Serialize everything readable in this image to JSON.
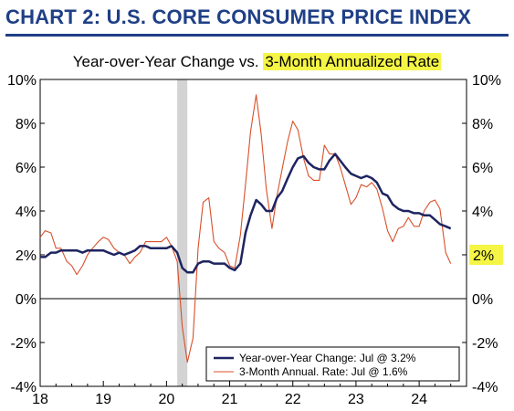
{
  "header": {
    "title": "CHART 2: U.S. CORE CONSUMER PRICE INDEX"
  },
  "subtitle": {
    "part1": "Year-over-Year Change vs. ",
    "part2": "3-Month Annualized Rate"
  },
  "colors": {
    "header": "#1f3f86",
    "yoy": "#1e2460",
    "annualized": "#d9502a",
    "highlight": "#f5f545",
    "recession": "#d3d3d3"
  },
  "chart_data": {
    "type": "line",
    "xlim": [
      18,
      24.75
    ],
    "ylim": [
      -4,
      10
    ],
    "x_ticks": [
      18,
      19,
      20,
      21,
      22,
      23,
      24
    ],
    "x_tick_labels": [
      "18",
      "19",
      "20",
      "21",
      "22",
      "23",
      "24"
    ],
    "y_ticks": [
      -4,
      -2,
      0,
      2,
      4,
      6,
      8,
      10
    ],
    "y_tick_labels": [
      "-4%",
      "-2%",
      "0%",
      "2%",
      "4%",
      "6%",
      "8%",
      "10%"
    ],
    "right_highlight_label": "2%",
    "right_highlight_value": 2,
    "recession_band": [
      20.17,
      20.33
    ],
    "grid": false,
    "legend_position": "bottom-right",
    "series": [
      {
        "name": "Year-over-Year Change: Jul @  3.2%",
        "values": [
          [
            18.0,
            1.9
          ],
          [
            18.08,
            1.9
          ],
          [
            18.17,
            2.1
          ],
          [
            18.25,
            2.1
          ],
          [
            18.33,
            2.2
          ],
          [
            18.42,
            2.2
          ],
          [
            18.5,
            2.2
          ],
          [
            18.58,
            2.2
          ],
          [
            18.67,
            2.1
          ],
          [
            18.75,
            2.2
          ],
          [
            18.83,
            2.2
          ],
          [
            18.92,
            2.2
          ],
          [
            19.0,
            2.2
          ],
          [
            19.08,
            2.1
          ],
          [
            19.17,
            2.0
          ],
          [
            19.25,
            2.1
          ],
          [
            19.33,
            2.0
          ],
          [
            19.42,
            2.1
          ],
          [
            19.5,
            2.2
          ],
          [
            19.58,
            2.4
          ],
          [
            19.67,
            2.4
          ],
          [
            19.75,
            2.3
          ],
          [
            19.83,
            2.3
          ],
          [
            19.92,
            2.3
          ],
          [
            20.0,
            2.3
          ],
          [
            20.08,
            2.4
          ],
          [
            20.17,
            2.1
          ],
          [
            20.25,
            1.4
          ],
          [
            20.33,
            1.2
          ],
          [
            20.42,
            1.2
          ],
          [
            20.5,
            1.6
          ],
          [
            20.58,
            1.7
          ],
          [
            20.67,
            1.7
          ],
          [
            20.75,
            1.6
          ],
          [
            20.83,
            1.6
          ],
          [
            20.92,
            1.6
          ],
          [
            21.0,
            1.4
          ],
          [
            21.08,
            1.3
          ],
          [
            21.17,
            1.6
          ],
          [
            21.25,
            3.0
          ],
          [
            21.33,
            3.8
          ],
          [
            21.42,
            4.5
          ],
          [
            21.5,
            4.3
          ],
          [
            21.58,
            4.0
          ],
          [
            21.67,
            4.0
          ],
          [
            21.75,
            4.6
          ],
          [
            21.83,
            4.9
          ],
          [
            21.92,
            5.5
          ],
          [
            22.0,
            6.0
          ],
          [
            22.08,
            6.4
          ],
          [
            22.17,
            6.5
          ],
          [
            22.25,
            6.2
          ],
          [
            22.33,
            6.0
          ],
          [
            22.42,
            5.9
          ],
          [
            22.5,
            5.9
          ],
          [
            22.58,
            6.3
          ],
          [
            22.67,
            6.6
          ],
          [
            22.75,
            6.3
          ],
          [
            22.83,
            6.0
          ],
          [
            22.92,
            5.7
          ],
          [
            23.0,
            5.6
          ],
          [
            23.08,
            5.5
          ],
          [
            23.17,
            5.6
          ],
          [
            23.25,
            5.5
          ],
          [
            23.33,
            5.3
          ],
          [
            23.42,
            4.8
          ],
          [
            23.5,
            4.7
          ],
          [
            23.58,
            4.3
          ],
          [
            23.67,
            4.1
          ],
          [
            23.75,
            4.0
          ],
          [
            23.83,
            4.0
          ],
          [
            23.92,
            3.9
          ],
          [
            24.0,
            3.9
          ],
          [
            24.08,
            3.8
          ],
          [
            24.17,
            3.8
          ],
          [
            24.25,
            3.6
          ],
          [
            24.33,
            3.4
          ],
          [
            24.42,
            3.3
          ],
          [
            24.5,
            3.2
          ]
        ]
      },
      {
        "name": "3-Month Annual. Rate: Jul @ 1.6%",
        "values": [
          [
            18.0,
            2.8
          ],
          [
            18.08,
            3.1
          ],
          [
            18.17,
            3.0
          ],
          [
            18.25,
            2.3
          ],
          [
            18.33,
            2.3
          ],
          [
            18.42,
            1.7
          ],
          [
            18.5,
            1.5
          ],
          [
            18.58,
            1.1
          ],
          [
            18.67,
            1.5
          ],
          [
            18.75,
            2.0
          ],
          [
            18.83,
            2.3
          ],
          [
            18.92,
            2.6
          ],
          [
            19.0,
            2.8
          ],
          [
            19.08,
            2.7
          ],
          [
            19.17,
            2.3
          ],
          [
            19.25,
            2.1
          ],
          [
            19.33,
            2.0
          ],
          [
            19.42,
            1.6
          ],
          [
            19.5,
            1.9
          ],
          [
            19.58,
            2.1
          ],
          [
            19.67,
            2.6
          ],
          [
            19.75,
            2.6
          ],
          [
            19.83,
            2.6
          ],
          [
            19.92,
            2.6
          ],
          [
            20.0,
            2.8
          ],
          [
            20.08,
            2.4
          ],
          [
            20.17,
            1.7
          ],
          [
            20.25,
            -1.3
          ],
          [
            20.33,
            -2.9
          ],
          [
            20.42,
            -1.8
          ],
          [
            20.5,
            2.3
          ],
          [
            20.58,
            4.4
          ],
          [
            20.67,
            4.6
          ],
          [
            20.75,
            2.6
          ],
          [
            20.83,
            2.3
          ],
          [
            20.92,
            2.1
          ],
          [
            21.0,
            1.5
          ],
          [
            21.08,
            1.4
          ],
          [
            21.17,
            2.9
          ],
          [
            21.25,
            5.2
          ],
          [
            21.33,
            7.6
          ],
          [
            21.42,
            9.3
          ],
          [
            21.5,
            7.5
          ],
          [
            21.58,
            5.0
          ],
          [
            21.67,
            3.2
          ],
          [
            21.75,
            4.7
          ],
          [
            21.83,
            5.9
          ],
          [
            21.92,
            7.2
          ],
          [
            22.0,
            8.1
          ],
          [
            22.08,
            7.7
          ],
          [
            22.17,
            6.4
          ],
          [
            22.25,
            5.6
          ],
          [
            22.33,
            5.4
          ],
          [
            22.42,
            5.4
          ],
          [
            22.5,
            7.0
          ],
          [
            22.58,
            6.6
          ],
          [
            22.67,
            6.6
          ],
          [
            22.75,
            6.0
          ],
          [
            22.83,
            5.2
          ],
          [
            22.92,
            4.3
          ],
          [
            23.0,
            4.6
          ],
          [
            23.08,
            5.2
          ],
          [
            23.17,
            5.1
          ],
          [
            23.25,
            5.3
          ],
          [
            23.33,
            5.0
          ],
          [
            23.42,
            4.1
          ],
          [
            23.5,
            3.1
          ],
          [
            23.58,
            2.6
          ],
          [
            23.67,
            3.2
          ],
          [
            23.75,
            3.3
          ],
          [
            23.83,
            3.7
          ],
          [
            23.92,
            3.3
          ],
          [
            24.0,
            3.3
          ],
          [
            24.08,
            4.0
          ],
          [
            24.17,
            4.4
          ],
          [
            24.25,
            4.5
          ],
          [
            24.33,
            4.1
          ],
          [
            24.42,
            2.1
          ],
          [
            24.5,
            1.6
          ]
        ]
      }
    ]
  }
}
